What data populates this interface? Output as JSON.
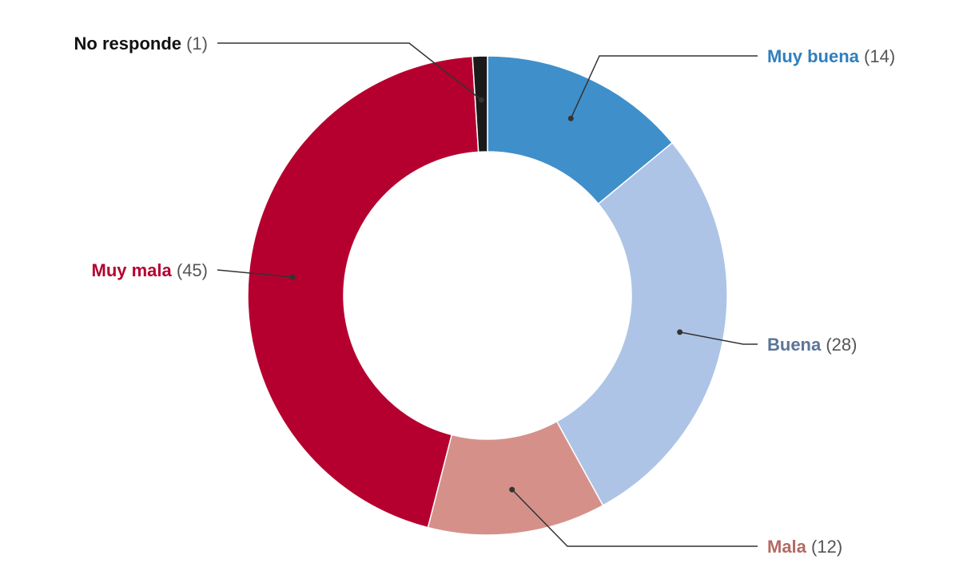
{
  "chart_data": {
    "type": "pie",
    "variant": "donut",
    "title": "",
    "slices": [
      {
        "label": "Muy buena",
        "count_text": "(14)",
        "value": 14,
        "color": "#3f8fcb",
        "text_color": "#2f7fbd"
      },
      {
        "label": "Buena",
        "count_text": "(28)",
        "value": 28,
        "color": "#adc4e6",
        "text_color": "#5a7598"
      },
      {
        "label": "Mala",
        "count_text": "(12)",
        "value": 12,
        "color": "#d6908a",
        "text_color": "#b46a63"
      },
      {
        "label": "Muy mala",
        "count_text": "(45)",
        "value": 45,
        "color": "#b5002f",
        "text_color": "#b5002f"
      },
      {
        "label": "No responde",
        "count_text": "(1)",
        "value": 1,
        "color": "#1a1a1a",
        "text_color": "#111111"
      }
    ],
    "count_text_color": "#555555",
    "leader_line_color": "#333333"
  }
}
